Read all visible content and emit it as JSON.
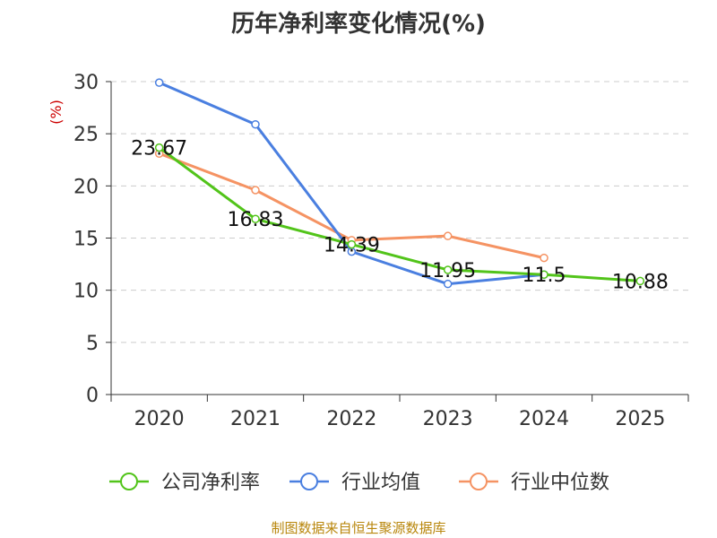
{
  "chart_data": {
    "type": "line",
    "title": "历年净利率变化情况(%)",
    "ylabel": "(%)",
    "xlabel": "",
    "categories": [
      "2020",
      "2021",
      "2022",
      "2023",
      "2024",
      "2025"
    ],
    "ylim": [
      0,
      30
    ],
    "yticks": [
      "0",
      "5",
      "10",
      "15",
      "20",
      "25",
      "30"
    ],
    "grid": true,
    "legend_position": "bottom",
    "series": [
      {
        "name": "公司净利率",
        "color": "#52c41a",
        "values": [
          23.67,
          16.83,
          14.39,
          11.95,
          11.5,
          10.88
        ],
        "labels": [
          "23.67",
          "16.83",
          "14.39",
          "11.95",
          "11.5",
          "10.88"
        ]
      },
      {
        "name": "行业均值",
        "color": "#4a7fe0",
        "values": [
          29.9,
          25.9,
          13.7,
          10.6,
          11.5,
          null
        ]
      },
      {
        "name": "行业中位数",
        "color": "#f59363",
        "values": [
          23.1,
          19.6,
          14.8,
          15.2,
          13.1,
          null
        ]
      }
    ]
  },
  "source_text": "制图数据来自恒生聚源数据库"
}
